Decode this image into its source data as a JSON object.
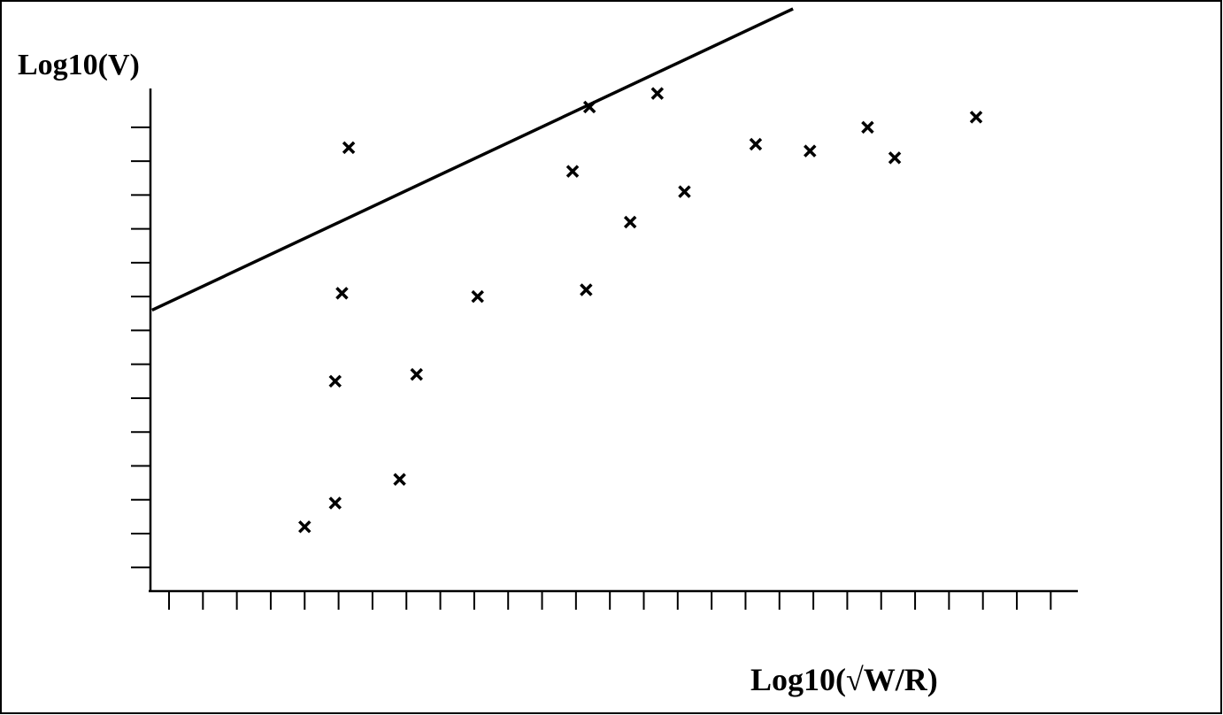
{
  "chart_data": {
    "type": "scatter",
    "y_label": "Log10(V)",
    "x_label": "Log10(√W/R)",
    "xlim": [
      0.4,
      27.8
    ],
    "ylim": [
      0.3,
      17.5
    ],
    "xticks": [
      1,
      2,
      3,
      4,
      5,
      6,
      7,
      8,
      9,
      10,
      11,
      12,
      13,
      14,
      15,
      16,
      17,
      18,
      19,
      20,
      21,
      22,
      23,
      24,
      25,
      26,
      27
    ],
    "yticks": [
      1,
      2,
      3,
      4,
      5,
      6,
      7,
      8,
      9,
      10,
      11,
      12,
      13,
      14
    ],
    "series": [
      {
        "type": "scatter",
        "color": "#000000",
        "x": [
          6.3,
          6.1,
          5.9,
          5.9,
          5.0,
          7.8,
          8.3,
          10.1,
          13.3,
          12.9,
          13.4,
          15.4,
          14.6,
          16.2,
          18.3,
          19.9,
          21.6,
          22.4,
          24.8
        ],
        "values": [
          13.4,
          9.1,
          6.5,
          2.9,
          2.2,
          3.6,
          6.7,
          9.0,
          9.2,
          12.7,
          14.6,
          15.0,
          11.2,
          12.1,
          13.5,
          13.3,
          14.0,
          13.1,
          14.3
        ]
      },
      {
        "type": "line",
        "color": "#000000",
        "x": [
          0.5,
          19.4
        ],
        "values": [
          8.6,
          17.5
        ]
      }
    ]
  }
}
